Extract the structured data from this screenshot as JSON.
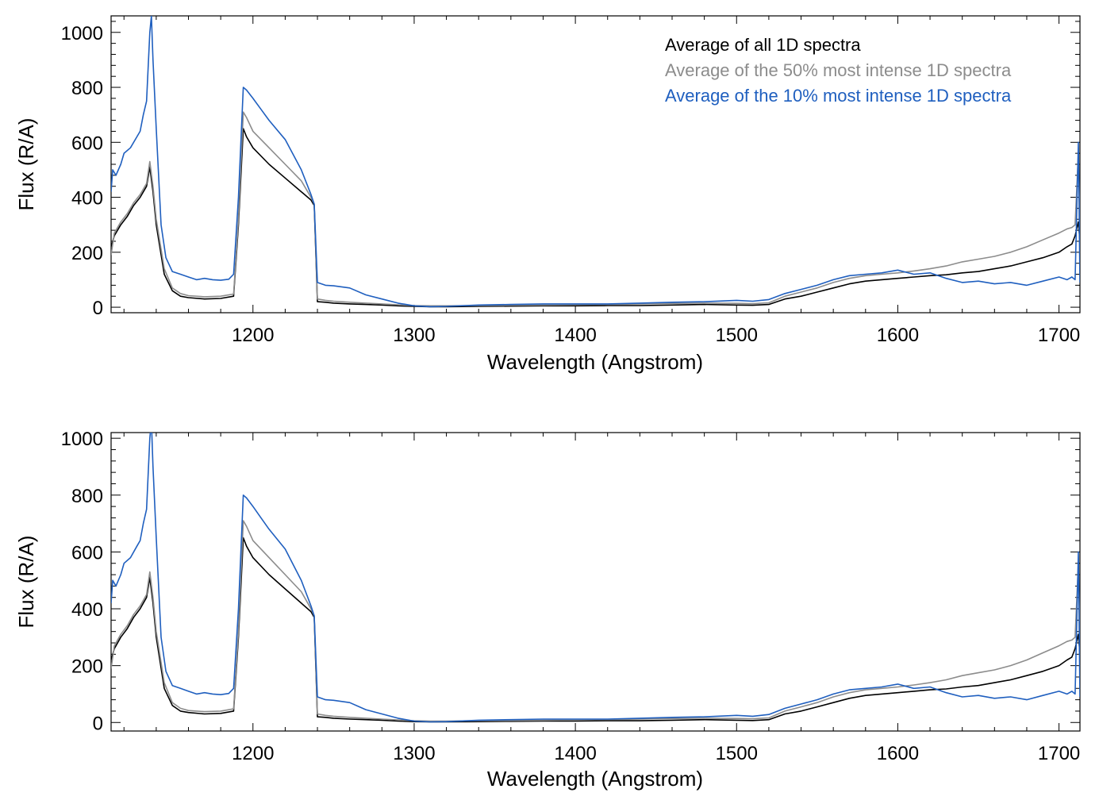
{
  "chart_data": [
    {
      "type": "line",
      "xlabel": "Wavelength (Angstrom)",
      "ylabel": "Flux (R/A)",
      "xlim": [
        1112,
        1713
      ],
      "ylim": [
        -20,
        1060
      ],
      "xticks": [
        1200,
        1300,
        1400,
        1500,
        1600,
        1700
      ],
      "yticks": [
        0,
        200,
        400,
        600,
        800,
        1000
      ],
      "legend": {
        "placement": "top-right"
      },
      "series": [
        {
          "name": "Average of all 1D spectra",
          "color": "#000000",
          "x": [
            1112,
            1114,
            1118,
            1122,
            1126,
            1130,
            1134,
            1136,
            1138,
            1140,
            1145,
            1150,
            1155,
            1160,
            1170,
            1180,
            1188,
            1191,
            1194,
            1196,
            1200,
            1210,
            1220,
            1230,
            1236,
            1238,
            1240,
            1245,
            1250,
            1260,
            1270,
            1280,
            1290,
            1300,
            1310,
            1320,
            1340,
            1360,
            1380,
            1400,
            1420,
            1440,
            1460,
            1480,
            1500,
            1510,
            1520,
            1530,
            1540,
            1550,
            1560,
            1570,
            1580,
            1590,
            1600,
            1610,
            1620,
            1630,
            1640,
            1650,
            1660,
            1670,
            1680,
            1690,
            1700,
            1705,
            1708,
            1710,
            1712,
            1713
          ],
          "y": [
            220,
            260,
            300,
            330,
            370,
            400,
            440,
            510,
            420,
            300,
            120,
            60,
            40,
            35,
            30,
            32,
            40,
            300,
            650,
            620,
            580,
            520,
            470,
            420,
            390,
            370,
            20,
            18,
            15,
            12,
            10,
            8,
            5,
            3,
            2,
            2,
            3,
            4,
            5,
            5,
            6,
            6,
            8,
            10,
            8,
            7,
            10,
            30,
            40,
            55,
            70,
            85,
            95,
            100,
            105,
            110,
            115,
            118,
            125,
            130,
            140,
            150,
            165,
            180,
            200,
            220,
            230,
            260,
            310,
            240
          ]
        },
        {
          "name": "Average of the 50% most intense 1D spectra",
          "color": "#8c8c8c",
          "x": [
            1112,
            1114,
            1118,
            1122,
            1126,
            1130,
            1134,
            1136,
            1138,
            1140,
            1145,
            1150,
            1155,
            1160,
            1170,
            1180,
            1188,
            1191,
            1194,
            1196,
            1200,
            1210,
            1220,
            1230,
            1236,
            1238,
            1240,
            1245,
            1250,
            1260,
            1270,
            1280,
            1290,
            1300,
            1310,
            1320,
            1340,
            1360,
            1380,
            1400,
            1420,
            1440,
            1460,
            1480,
            1500,
            1510,
            1520,
            1530,
            1540,
            1550,
            1560,
            1570,
            1580,
            1590,
            1600,
            1610,
            1620,
            1630,
            1640,
            1650,
            1660,
            1670,
            1680,
            1690,
            1700,
            1705,
            1708,
            1710,
            1712,
            1713
          ],
          "y": [
            190,
            270,
            310,
            340,
            380,
            410,
            450,
            530,
            440,
            320,
            140,
            70,
            50,
            42,
            38,
            40,
            48,
            320,
            710,
            690,
            640,
            580,
            520,
            460,
            400,
            375,
            30,
            25,
            22,
            18,
            15,
            12,
            9,
            6,
            5,
            5,
            6,
            7,
            8,
            9,
            10,
            12,
            14,
            15,
            14,
            13,
            16,
            40,
            55,
            70,
            90,
            105,
            115,
            120,
            125,
            132,
            140,
            150,
            165,
            175,
            185,
            200,
            220,
            245,
            270,
            285,
            290,
            300,
            560,
            300
          ]
        },
        {
          "name": "Average of the 10% most intense 1D spectra",
          "color": "#1f5fbf",
          "x": [
            1112,
            1113,
            1115,
            1118,
            1120,
            1124,
            1128,
            1130,
            1132,
            1134,
            1136,
            1137,
            1138,
            1140,
            1143,
            1146,
            1150,
            1155,
            1160,
            1165,
            1170,
            1175,
            1180,
            1185,
            1188,
            1191,
            1194,
            1196,
            1200,
            1205,
            1210,
            1220,
            1230,
            1236,
            1238,
            1240,
            1245,
            1250,
            1260,
            1270,
            1280,
            1290,
            1300,
            1310,
            1320,
            1340,
            1360,
            1380,
            1400,
            1420,
            1440,
            1460,
            1480,
            1500,
            1510,
            1520,
            1530,
            1540,
            1550,
            1560,
            1570,
            1580,
            1590,
            1600,
            1610,
            1620,
            1630,
            1640,
            1650,
            1660,
            1670,
            1680,
            1690,
            1700,
            1705,
            1708,
            1710,
            1712,
            1713
          ],
          "y": [
            420,
            500,
            480,
            520,
            560,
            580,
            620,
            640,
            700,
            750,
            1000,
            1060,
            900,
            650,
            300,
            180,
            130,
            120,
            110,
            100,
            105,
            100,
            98,
            102,
            120,
            400,
            800,
            790,
            760,
            720,
            680,
            610,
            500,
            410,
            375,
            90,
            80,
            78,
            70,
            45,
            30,
            15,
            5,
            2,
            3,
            8,
            10,
            12,
            12,
            12,
            15,
            18,
            20,
            25,
            22,
            28,
            50,
            65,
            80,
            100,
            115,
            120,
            125,
            135,
            120,
            125,
            105,
            90,
            95,
            85,
            90,
            80,
            95,
            110,
            100,
            110,
            100,
            600,
            90
          ]
        }
      ]
    },
    {
      "type": "line",
      "xlabel": "Wavelength (Angstrom)",
      "ylabel": "Flux (R/A)",
      "xlim": [
        1112,
        1713
      ],
      "ylim": [
        -30,
        1020
      ],
      "xticks": [
        1200,
        1300,
        1400,
        1500,
        1600,
        1700
      ],
      "yticks": [
        0,
        200,
        400,
        600,
        800,
        1000
      ],
      "series": [
        {
          "name": "Average of all 1D spectra",
          "color": "#000000",
          "x": [
            1112,
            1114,
            1118,
            1122,
            1126,
            1130,
            1134,
            1136,
            1138,
            1140,
            1145,
            1150,
            1155,
            1160,
            1170,
            1180,
            1188,
            1191,
            1194,
            1196,
            1200,
            1210,
            1220,
            1230,
            1236,
            1238,
            1240,
            1245,
            1250,
            1260,
            1270,
            1280,
            1290,
            1300,
            1310,
            1320,
            1340,
            1360,
            1380,
            1400,
            1420,
            1440,
            1460,
            1480,
            1500,
            1510,
            1520,
            1530,
            1540,
            1550,
            1560,
            1570,
            1580,
            1590,
            1600,
            1610,
            1620,
            1630,
            1640,
            1650,
            1660,
            1670,
            1680,
            1690,
            1700,
            1705,
            1708,
            1710,
            1712,
            1713
          ],
          "y": [
            220,
            260,
            300,
            330,
            370,
            400,
            440,
            510,
            420,
            300,
            120,
            60,
            40,
            35,
            30,
            32,
            40,
            300,
            650,
            620,
            580,
            520,
            470,
            420,
            390,
            370,
            20,
            18,
            15,
            12,
            10,
            8,
            5,
            3,
            2,
            2,
            3,
            4,
            5,
            5,
            6,
            6,
            8,
            10,
            8,
            7,
            10,
            30,
            40,
            55,
            70,
            85,
            95,
            100,
            105,
            110,
            115,
            118,
            125,
            130,
            140,
            150,
            165,
            180,
            200,
            220,
            230,
            260,
            310,
            240
          ]
        },
        {
          "name": "Average of the 50% most intense 1D spectra",
          "color": "#8c8c8c",
          "x": [
            1112,
            1114,
            1118,
            1122,
            1126,
            1130,
            1134,
            1136,
            1138,
            1140,
            1145,
            1150,
            1155,
            1160,
            1170,
            1180,
            1188,
            1191,
            1194,
            1196,
            1200,
            1210,
            1220,
            1230,
            1236,
            1238,
            1240,
            1245,
            1250,
            1260,
            1270,
            1280,
            1290,
            1300,
            1310,
            1320,
            1340,
            1360,
            1380,
            1400,
            1420,
            1440,
            1460,
            1480,
            1500,
            1510,
            1520,
            1530,
            1540,
            1550,
            1560,
            1570,
            1580,
            1590,
            1600,
            1610,
            1620,
            1630,
            1640,
            1650,
            1660,
            1670,
            1680,
            1690,
            1700,
            1705,
            1708,
            1710,
            1712,
            1713
          ],
          "y": [
            190,
            270,
            310,
            340,
            380,
            410,
            450,
            530,
            440,
            320,
            140,
            70,
            50,
            42,
            38,
            40,
            48,
            320,
            710,
            690,
            640,
            580,
            520,
            460,
            400,
            375,
            30,
            25,
            22,
            18,
            15,
            12,
            9,
            6,
            5,
            5,
            6,
            7,
            8,
            9,
            10,
            12,
            14,
            15,
            14,
            13,
            16,
            40,
            55,
            70,
            90,
            105,
            115,
            120,
            125,
            132,
            140,
            150,
            165,
            175,
            185,
            200,
            220,
            245,
            270,
            285,
            290,
            300,
            560,
            300
          ]
        },
        {
          "name": "Average of the 10% most intense 1D spectra",
          "color": "#1f5fbf",
          "x": [
            1112,
            1113,
            1115,
            1118,
            1120,
            1124,
            1128,
            1130,
            1132,
            1134,
            1136,
            1137,
            1138,
            1140,
            1143,
            1146,
            1150,
            1155,
            1160,
            1165,
            1170,
            1175,
            1180,
            1185,
            1188,
            1191,
            1194,
            1196,
            1200,
            1205,
            1210,
            1220,
            1230,
            1236,
            1238,
            1240,
            1245,
            1250,
            1260,
            1270,
            1280,
            1290,
            1300,
            1310,
            1320,
            1340,
            1360,
            1380,
            1400,
            1420,
            1440,
            1460,
            1480,
            1500,
            1510,
            1520,
            1530,
            1540,
            1550,
            1560,
            1570,
            1580,
            1590,
            1600,
            1610,
            1620,
            1630,
            1640,
            1650,
            1660,
            1670,
            1680,
            1690,
            1700,
            1705,
            1708,
            1710,
            1712,
            1713
          ],
          "y": [
            420,
            500,
            480,
            520,
            560,
            580,
            620,
            640,
            700,
            750,
            1000,
            1060,
            900,
            650,
            300,
            180,
            130,
            120,
            110,
            100,
            105,
            100,
            98,
            102,
            120,
            400,
            800,
            790,
            760,
            720,
            680,
            610,
            500,
            410,
            375,
            90,
            80,
            78,
            70,
            45,
            30,
            15,
            5,
            2,
            3,
            8,
            10,
            12,
            12,
            12,
            15,
            18,
            20,
            25,
            22,
            28,
            50,
            65,
            80,
            100,
            115,
            120,
            125,
            135,
            120,
            125,
            105,
            90,
            95,
            85,
            90,
            80,
            95,
            110,
            100,
            110,
            100,
            600,
            90
          ]
        }
      ]
    }
  ]
}
